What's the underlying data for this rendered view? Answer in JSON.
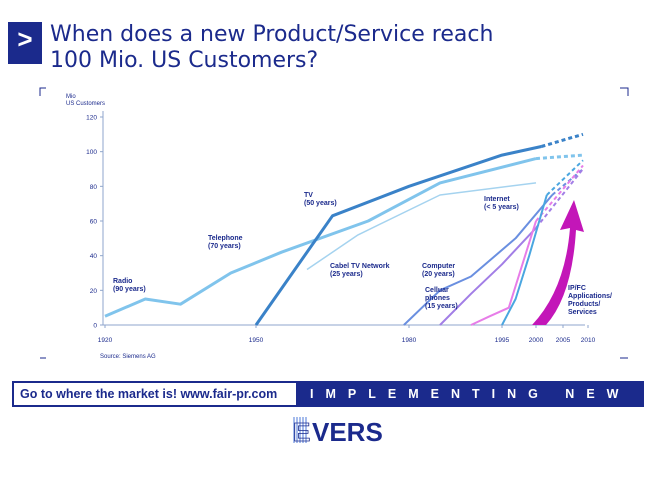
{
  "header": {
    "marker": ">",
    "title_line1": "When does a new Product/Service reach",
    "title_line2": "100 Mio. US Customers?"
  },
  "chart_data": {
    "type": "line",
    "ylabel_line1": "Mio",
    "ylabel_line2": "US Customers",
    "ylim": [
      0,
      120
    ],
    "yticks": [
      0,
      20,
      40,
      60,
      80,
      100,
      120
    ],
    "xlim": [
      1920,
      2010
    ],
    "xticks": [
      1920,
      1950,
      1980,
      1995,
      2000,
      2005,
      2010
    ],
    "grid": false,
    "source": "Source: Siemens AG",
    "series": [
      {
        "name": "Radio",
        "duration": "(90 years)",
        "color": "#80c4ec",
        "width": 3,
        "points": [
          [
            1920,
            5
          ],
          [
            1928,
            15
          ],
          [
            1935,
            12
          ],
          [
            1945,
            30
          ],
          [
            1955,
            42
          ],
          [
            1972,
            60
          ],
          [
            1985,
            82
          ],
          [
            2000,
            96
          ]
        ],
        "projection": [
          [
            2000,
            96
          ],
          [
            2009,
            98
          ]
        ]
      },
      {
        "name": "Telephone",
        "duration": "(70 years)",
        "color": "#a5d3ef",
        "width": 1.5,
        "points": [
          [
            1960,
            32
          ],
          [
            1970,
            52
          ],
          [
            1985,
            75
          ],
          [
            2000,
            82
          ]
        ]
      },
      {
        "name": "TV",
        "duration": "(50 years)",
        "color": "#3a82c8",
        "width": 3,
        "points": [
          [
            1950,
            0
          ],
          [
            1965,
            63
          ],
          [
            1980,
            80
          ],
          [
            1995,
            98
          ],
          [
            2001,
            103
          ]
        ],
        "projection": [
          [
            2001,
            103
          ],
          [
            2009,
            110
          ]
        ]
      },
      {
        "name": "Cabel TV Network",
        "duration": "(25 years)",
        "color": "#6a8fe0",
        "width": 2,
        "points": [
          [
            1979,
            0
          ],
          [
            1985,
            20
          ],
          [
            1990,
            28
          ],
          [
            1997,
            50
          ],
          [
            2003,
            75
          ]
        ],
        "projection": [
          [
            2003,
            75
          ],
          [
            2009,
            90
          ]
        ]
      },
      {
        "name": "Computer",
        "duration": "(20 years)",
        "color": "#a27ee6",
        "width": 2,
        "points": [
          [
            1985,
            0
          ],
          [
            1990,
            18
          ],
          [
            1995,
            35
          ],
          [
            2000,
            56
          ]
        ],
        "projection": [
          [
            2000,
            56
          ],
          [
            2009,
            90
          ]
        ]
      },
      {
        "name": "Celluar phones",
        "duration": "(15 years)",
        "color": "#e77de8",
        "width": 2,
        "points": [
          [
            1990,
            0
          ],
          [
            1993,
            5
          ],
          [
            1996,
            10
          ],
          [
            2000,
            60
          ]
        ],
        "projection": [
          [
            2000,
            60
          ],
          [
            2009,
            92
          ]
        ]
      },
      {
        "name": "Internet",
        "duration": "(< 5 years)",
        "color": "#4aa6e0",
        "width": 2,
        "points": [
          [
            1995,
            0
          ],
          [
            1997,
            15
          ],
          [
            1999,
            40
          ],
          [
            2002,
            75
          ]
        ],
        "projection": [
          [
            2002,
            75
          ],
          [
            2009,
            95
          ]
        ]
      }
    ],
    "annotations": [
      {
        "text_line1": "Radio",
        "text_line2": "(90 years)"
      },
      {
        "text_line1": "Telephone",
        "text_line2": "(70 years)"
      },
      {
        "text_line1": "TV",
        "text_line2": "(50 years)"
      },
      {
        "text_line1": "Cabel TV Network",
        "text_line2": "(25 years)"
      },
      {
        "text_line1": "Computer",
        "text_line2": "(20 years)"
      },
      {
        "text_line1": "Celluar",
        "text_line2": "phones",
        "text_line3": "(15 years)"
      },
      {
        "text_line1": "Internet",
        "text_line2": "(< 5 years)"
      },
      {
        "text_line1": "IP/FC",
        "text_line2": "Applications/",
        "text_line3": "Products/",
        "text_line4": "Services"
      }
    ]
  },
  "banner": {
    "left_text": "Go to where the market is!  www.fair-pr.com",
    "right_text": "IMPLEMENTING NEW IDEAS"
  },
  "logo": {
    "text_e": "E",
    "text_vers": "VERS",
    "color": "#1b2a8c",
    "accent": "#6a8fe0"
  },
  "colors": {
    "brand": "#1b2a8c",
    "axis": "#8fa6cc",
    "arrow": "#c316b8"
  }
}
